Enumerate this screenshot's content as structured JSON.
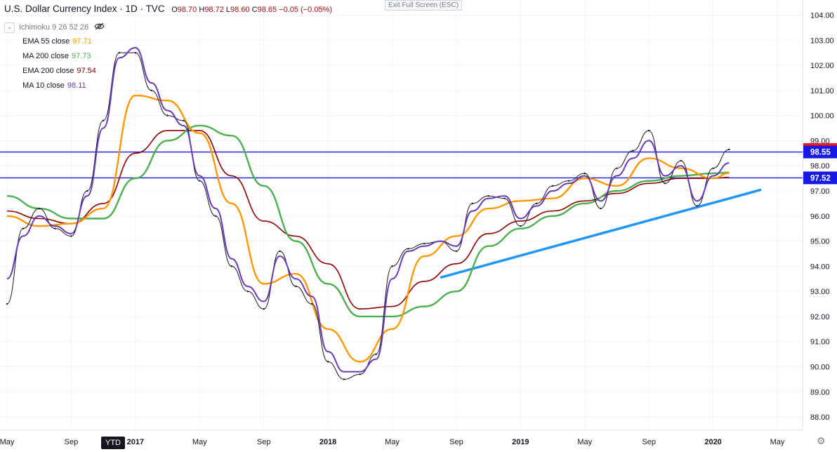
{
  "header": {
    "symbol": "U.S. Dollar Currency Index · 1D · TVC",
    "open_label": "O",
    "open": "98.70",
    "high_label": "H",
    "high": "98.72",
    "low_label": "L",
    "low": "98.60",
    "close_label": "C",
    "close": "98.65",
    "change": "−0.05 (−0.05%)"
  },
  "exit_fullscreen": "Exit Full Screen (ESC)",
  "indicators": {
    "ichimoku": "Ichimoku 9 26 52 26",
    "items": [
      {
        "label": "EMA 55 close",
        "value": "97.71",
        "color": "#ff9800"
      },
      {
        "label": "MA 200 close",
        "value": "97.73",
        "color": "#4caf50"
      },
      {
        "label": "EMA 200 close",
        "value": "97.54",
        "color": "#8b0000"
      },
      {
        "label": "MA 10 close",
        "value": "98.11",
        "color": "#673ab7"
      }
    ]
  },
  "ytd_button": "YTD",
  "icons": {
    "toggle": "chevron-down-icon",
    "eye": "eye-off-icon",
    "settings": "gear-icon"
  },
  "chart_data": {
    "type": "line",
    "y_axis_ticks": [
      "104.00",
      "103.00",
      "102.00",
      "101.00",
      "100.00",
      "99.00",
      "98.00",
      "97.00",
      "96.00",
      "95.00",
      "94.00",
      "93.00",
      "92.00",
      "91.00",
      "90.00",
      "89.00",
      "88.00"
    ],
    "x_axis_ticks": [
      "May",
      "Sep",
      "2017",
      "May",
      "Sep",
      "2018",
      "May",
      "Sep",
      "2019",
      "May",
      "Sep",
      "2020",
      "May"
    ],
    "ylim": [
      87.5,
      104.6
    ],
    "price_labels": [
      {
        "text": "98.65",
        "value": 98.65,
        "color": "#ff1a1a"
      },
      {
        "text": "98.55",
        "value": 98.55,
        "color": "#1717e6"
      },
      {
        "text": "97.52",
        "value": 97.52,
        "color": "#1717e6"
      }
    ],
    "horizontal_lines": [
      98.55,
      97.52
    ],
    "trend_line": {
      "from": [
        "Aug 2018",
        93.55
      ],
      "to": [
        "Apr 2020",
        97.05
      ],
      "color": "#2196f3"
    },
    "series": [
      {
        "name": "Price",
        "color": "#131722",
        "x": [
          "May 2016",
          "Jun 2016",
          "Jul 2016",
          "Aug 2016",
          "Sep 2016",
          "Oct 2016",
          "Nov 2016",
          "Dec 2016",
          "Jan 2017",
          "Feb 2017",
          "Mar 2017",
          "Apr 2017",
          "May 2017",
          "Jun 2017",
          "Jul 2017",
          "Aug 2017",
          "Sep 2017",
          "Oct 2017",
          "Nov 2017",
          "Dec 2017",
          "Jan 2018",
          "Feb 2018",
          "Mar 2018",
          "Apr 2018",
          "May 2018",
          "Jun 2018",
          "Jul 2018",
          "Aug 2018",
          "Sep 2018",
          "Oct 2018",
          "Nov 2018",
          "Dec 2018",
          "Jan 2019",
          "Feb 2019",
          "Mar 2019",
          "Apr 2019",
          "May 2019",
          "Jun 2019",
          "Jul 2019",
          "Aug 2019",
          "Sep 2019",
          "Oct 2019",
          "Nov 2019",
          "Dec 2019",
          "Jan 2020",
          "Feb 2020"
        ],
        "values": [
          92.5,
          95.5,
          96.3,
          95.5,
          95.2,
          97.0,
          99.8,
          102.5,
          102.5,
          101.0,
          100.0,
          99.8,
          97.4,
          96.0,
          94.0,
          93.0,
          92.3,
          94.6,
          93.2,
          92.5,
          90.2,
          89.5,
          89.7,
          90.5,
          94.0,
          94.7,
          94.9,
          95.0,
          94.6,
          96.5,
          96.8,
          96.7,
          95.6,
          96.5,
          97.2,
          97.4,
          97.7,
          96.3,
          97.9,
          98.6,
          99.4,
          97.3,
          98.2,
          96.4,
          97.9,
          98.65
        ]
      },
      {
        "name": "EMA 55 close",
        "color": "#ff9800",
        "x": [
          "May 2016",
          "Jul 2016",
          "Sep 2016",
          "Nov 2016",
          "Jan 2017",
          "Mar 2017",
          "May 2017",
          "Jul 2017",
          "Sep 2017",
          "Nov 2017",
          "Jan 2018",
          "Mar 2018",
          "May 2018",
          "Jul 2018",
          "Sep 2018",
          "Nov 2018",
          "Jan 2019",
          "Mar 2019",
          "May 2019",
          "Jul 2019",
          "Sep 2019",
          "Nov 2019",
          "Jan 2020",
          "Feb 2020"
        ],
        "values": [
          96.0,
          95.6,
          95.7,
          96.3,
          100.8,
          100.6,
          99.3,
          96.5,
          93.3,
          93.7,
          91.5,
          90.2,
          91.5,
          94.4,
          95.2,
          96.3,
          96.6,
          96.7,
          97.5,
          97.2,
          98.3,
          97.9,
          97.5,
          97.71
        ]
      },
      {
        "name": "MA 200 close",
        "color": "#4caf50",
        "x": [
          "May 2016",
          "Jul 2016",
          "Sep 2016",
          "Nov 2016",
          "Jan 2017",
          "Mar 2017",
          "May 2017",
          "Jul 2017",
          "Sep 2017",
          "Nov 2017",
          "Jan 2018",
          "Mar 2018",
          "May 2018",
          "Jul 2018",
          "Sep 2018",
          "Nov 2018",
          "Jan 2019",
          "Mar 2019",
          "May 2019",
          "Jul 2019",
          "Sep 2019",
          "Nov 2019",
          "Jan 2020",
          "Feb 2020"
        ],
        "values": [
          96.8,
          96.3,
          95.9,
          95.9,
          97.5,
          99.0,
          99.6,
          99.2,
          97.2,
          95.0,
          93.3,
          92.0,
          92.0,
          92.4,
          93.0,
          94.8,
          95.5,
          96.0,
          96.5,
          97.0,
          97.4,
          97.6,
          97.7,
          97.73
        ]
      },
      {
        "name": "EMA 200 close",
        "color": "#8b0000",
        "x": [
          "May 2016",
          "Jul 2016",
          "Sep 2016",
          "Nov 2016",
          "Jan 2017",
          "Mar 2017",
          "May 2017",
          "Jul 2017",
          "Sep 2017",
          "Nov 2017",
          "Jan 2018",
          "Mar 2018",
          "May 2018",
          "Jul 2018",
          "Sep 2018",
          "Nov 2018",
          "Jan 2019",
          "Mar 2019",
          "May 2019",
          "Jul 2019",
          "Sep 2019",
          "Nov 2019",
          "Jan 2020",
          "Feb 2020"
        ],
        "values": [
          96.2,
          95.9,
          95.7,
          96.5,
          98.5,
          99.4,
          99.4,
          97.6,
          95.8,
          95.2,
          94.1,
          92.3,
          92.4,
          93.4,
          94.1,
          95.3,
          95.8,
          96.2,
          96.6,
          96.9,
          97.3,
          97.5,
          97.5,
          97.54
        ]
      },
      {
        "name": "MA 10 close",
        "color": "#673ab7",
        "x": [
          "May 2016",
          "Jun 2016",
          "Jul 2016",
          "Aug 2016",
          "Sep 2016",
          "Oct 2016",
          "Nov 2016",
          "Dec 2016",
          "Jan 2017",
          "Feb 2017",
          "Mar 2017",
          "Apr 2017",
          "May 2017",
          "Jun 2017",
          "Jul 2017",
          "Aug 2017",
          "Sep 2017",
          "Oct 2017",
          "Nov 2017",
          "Dec 2017",
          "Jan 2018",
          "Feb 2018",
          "Mar 2018",
          "Apr 2018",
          "May 2018",
          "Jun 2018",
          "Jul 2018",
          "Aug 2018",
          "Sep 2018",
          "Oct 2018",
          "Nov 2018",
          "Dec 2018",
          "Jan 2019",
          "Feb 2019",
          "Mar 2019",
          "Apr 2019",
          "May 2019",
          "Jun 2019",
          "Jul 2019",
          "Aug 2019",
          "Sep 2019",
          "Oct 2019",
          "Nov 2019",
          "Dec 2019",
          "Jan 2020",
          "Feb 2020"
        ],
        "values": [
          93.5,
          95.2,
          96.0,
          95.6,
          95.3,
          96.8,
          99.5,
          102.3,
          102.7,
          101.3,
          100.2,
          99.6,
          97.6,
          96.3,
          94.3,
          93.2,
          92.6,
          94.4,
          93.5,
          92.8,
          90.6,
          89.8,
          89.8,
          90.3,
          93.5,
          94.6,
          94.8,
          95.0,
          94.8,
          96.2,
          96.7,
          96.8,
          95.9,
          96.4,
          97.0,
          97.3,
          97.6,
          96.6,
          97.6,
          98.3,
          99.0,
          97.6,
          98.0,
          96.6,
          97.6,
          98.11
        ]
      }
    ]
  }
}
